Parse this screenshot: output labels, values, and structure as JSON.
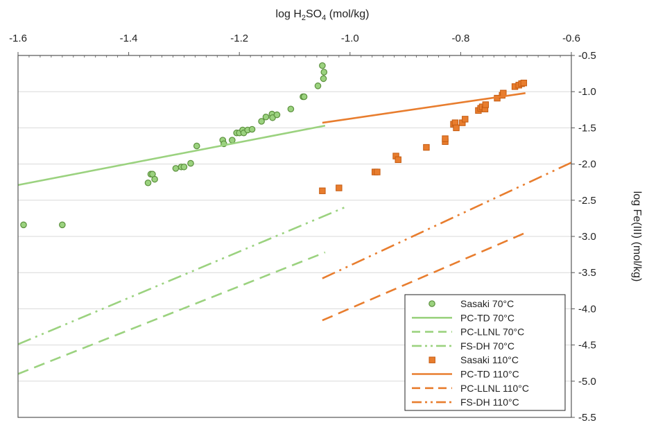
{
  "chart_data": {
    "type": "scatter",
    "title": "",
    "xlabel": "log H2SO4 (mol/kg)",
    "xlabel_parts": {
      "prefix": "log H",
      "sub1": "2",
      "mid": "SO",
      "sub2": "4",
      "suffix": " (mol/kg)"
    },
    "ylabel": "log Fe(III) (mol/kg)",
    "xlim": [
      -1.6,
      -0.6
    ],
    "ylim": [
      -5.5,
      -0.5
    ],
    "x_axis_position": "top",
    "y_axis_position": "right",
    "x_ticks": [
      "-1.6",
      "-1.4",
      "-1.2",
      "-1.0",
      "-0.8",
      "-0.6"
    ],
    "y_ticks": [
      "-0.5",
      "-1.0",
      "-1.5",
      "-2.0",
      "-2.5",
      "-3.0",
      "-3.5",
      "-4.0",
      "-4.5",
      "-5.0",
      "-5.5"
    ],
    "grid": true,
    "legend_position": "bottom-right",
    "colors": {
      "green": "#9bd27f",
      "green_edge": "#5a8f3c",
      "orange": "#e87d2e",
      "orange_edge": "#c45a10"
    },
    "series": [
      {
        "name": "Sasaki 70°C",
        "kind": "points",
        "marker": "circle",
        "color": "#9bd27f",
        "edge": "#5a8f3c",
        "points": [
          [
            -1.59,
            -2.84
          ],
          [
            -1.52,
            -2.84
          ],
          [
            -1.365,
            -2.26
          ],
          [
            -1.36,
            -2.14
          ],
          [
            -1.357,
            -2.14
          ],
          [
            -1.353,
            -2.21
          ],
          [
            -1.315,
            -2.06
          ],
          [
            -1.305,
            -2.04
          ],
          [
            -1.3,
            -2.04
          ],
          [
            -1.288,
            -1.99
          ],
          [
            -1.277,
            -1.75
          ],
          [
            -1.23,
            -1.67
          ],
          [
            -1.228,
            -1.72
          ],
          [
            -1.213,
            -1.67
          ],
          [
            -1.205,
            -1.57
          ],
          [
            -1.2,
            -1.57
          ],
          [
            -1.194,
            -1.53
          ],
          [
            -1.192,
            -1.57
          ],
          [
            -1.185,
            -1.53
          ],
          [
            -1.177,
            -1.52
          ],
          [
            -1.16,
            -1.41
          ],
          [
            -1.152,
            -1.35
          ],
          [
            -1.141,
            -1.31
          ],
          [
            -1.14,
            -1.36
          ],
          [
            -1.132,
            -1.32
          ],
          [
            -1.107,
            -1.24
          ],
          [
            -1.085,
            -1.07
          ],
          [
            -1.083,
            -1.07
          ],
          [
            -1.058,
            -0.92
          ],
          [
            -1.048,
            -0.82
          ],
          [
            -1.047,
            -0.73
          ],
          [
            -1.05,
            -0.64
          ]
        ]
      },
      {
        "name": "PC-TD 70°C",
        "kind": "line",
        "dash": "solid",
        "color": "#9bd27f",
        "points": [
          [
            -1.6,
            -2.29
          ],
          [
            -1.045,
            -1.47
          ]
        ]
      },
      {
        "name": "PC-LLNL 70°C",
        "kind": "line",
        "dash": "dash",
        "color": "#9bd27f",
        "points": [
          [
            -1.6,
            -4.9
          ],
          [
            -1.045,
            -3.22
          ]
        ]
      },
      {
        "name": "FS-DH 70°C",
        "kind": "line",
        "dash": "dashdotdot",
        "color": "#9bd27f",
        "points": [
          [
            -1.6,
            -4.49
          ],
          [
            -1.01,
            -2.6
          ]
        ]
      },
      {
        "name": "Sasaki 110°C",
        "kind": "points",
        "marker": "square",
        "color": "#e87d2e",
        "edge": "#c45a10",
        "points": [
          [
            -1.05,
            -2.37
          ],
          [
            -1.02,
            -2.33
          ],
          [
            -0.955,
            -2.11
          ],
          [
            -0.951,
            -2.11
          ],
          [
            -0.917,
            -1.89
          ],
          [
            -0.913,
            -1.94
          ],
          [
            -0.862,
            -1.77
          ],
          [
            -0.828,
            -1.69
          ],
          [
            -0.828,
            -1.65
          ],
          [
            -0.813,
            -1.45
          ],
          [
            -0.81,
            -1.43
          ],
          [
            -0.808,
            -1.5
          ],
          [
            -0.797,
            -1.43
          ],
          [
            -0.792,
            -1.38
          ],
          [
            -0.768,
            -1.26
          ],
          [
            -0.764,
            -1.23
          ],
          [
            -0.761,
            -1.21
          ],
          [
            -0.756,
            -1.24
          ],
          [
            -0.755,
            -1.18
          ],
          [
            -0.734,
            -1.09
          ],
          [
            -0.725,
            -1.05
          ],
          [
            -0.723,
            -1.02
          ],
          [
            -0.702,
            -0.93
          ],
          [
            -0.695,
            -0.91
          ],
          [
            -0.69,
            -0.89
          ],
          [
            -0.686,
            -0.88
          ]
        ]
      },
      {
        "name": "PC-TD 110°C",
        "kind": "line",
        "dash": "solid",
        "color": "#e87d2e",
        "points": [
          [
            -1.05,
            -1.43
          ],
          [
            -0.683,
            -1.02
          ]
        ]
      },
      {
        "name": "PC-LLNL 110°C",
        "kind": "line",
        "dash": "dash",
        "color": "#e87d2e",
        "points": [
          [
            -1.05,
            -4.16
          ],
          [
            -0.683,
            -2.95
          ]
        ]
      },
      {
        "name": "FS-DH 110°C",
        "kind": "line",
        "dash": "dashdotdot",
        "color": "#e87d2e",
        "points": [
          [
            -1.05,
            -3.58
          ],
          [
            -0.6,
            -1.98
          ]
        ]
      }
    ]
  }
}
